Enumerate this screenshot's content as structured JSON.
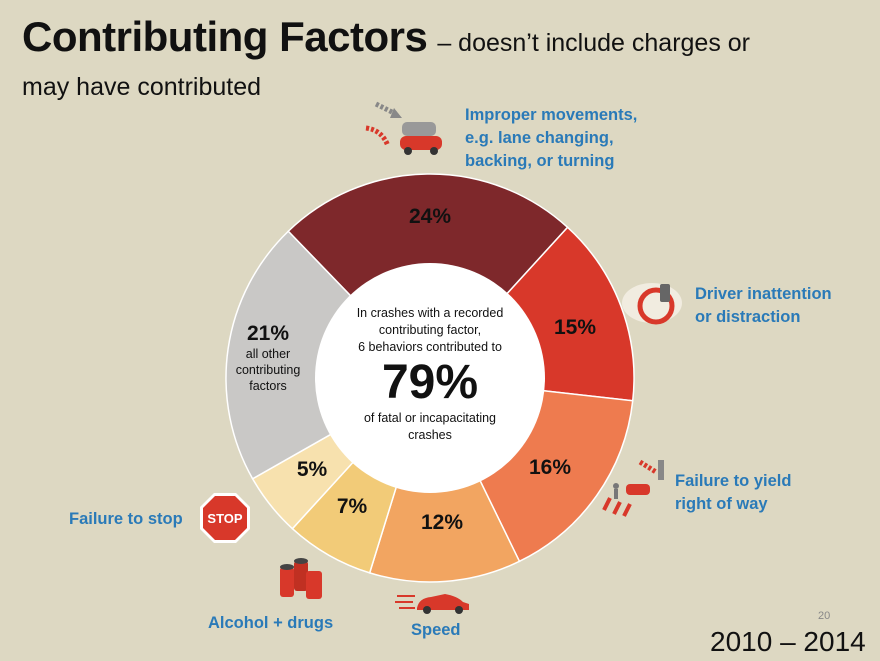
{
  "header": {
    "title": "Contributing Factors",
    "subtitle": "– doesn’t include charges or",
    "subtitle_line2": "may have contributed"
  },
  "center": {
    "line1": "In crashes with a recorded",
    "line2": "contributing factor,",
    "line3": "6 behaviors contributed to",
    "big": "79%",
    "line4": "of fatal or incapacitating",
    "line5": "crashes"
  },
  "labels": {
    "improper": [
      "Improper movements,",
      "e.g. lane changing,",
      "backing, or turning"
    ],
    "inattention": [
      "Driver inattention",
      "or distraction"
    ],
    "yield": [
      "Failure to yield",
      "right of way"
    ],
    "speed": "Speed",
    "alcohol": "Alcohol + drugs",
    "stop": "Failure to stop",
    "other_sub": "all other contributing factors"
  },
  "icons": {
    "stop_sign_text": "STOP"
  },
  "footer": {
    "years": "2010 – 2014",
    "page": "20"
  },
  "chart_data": {
    "type": "pie",
    "donut": true,
    "categories": [
      "Improper movements",
      "Driver inattention or distraction",
      "Failure to yield right of way",
      "Speed",
      "Alcohol + drugs",
      "Failure to stop",
      "All other contributing factors"
    ],
    "values": [
      24,
      15,
      16,
      12,
      7,
      5,
      21
    ],
    "value_labels": [
      "24%",
      "15%",
      "16%",
      "12%",
      "7%",
      "5%",
      "21%"
    ],
    "colors": [
      "#7e282b",
      "#d8382a",
      "#ee7b4f",
      "#f2a561",
      "#f2cb78",
      "#f7e1ae",
      "#c9c8c6"
    ],
    "start_angle_deg": -44
  }
}
